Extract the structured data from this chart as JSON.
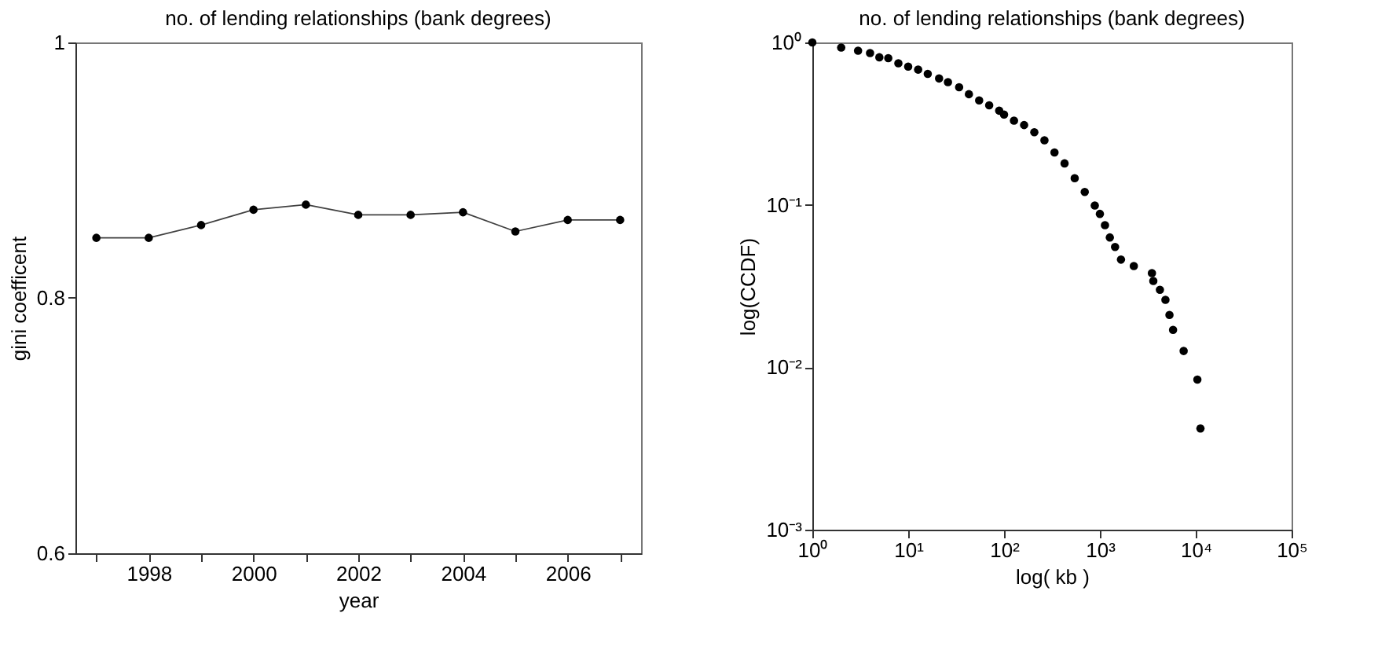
{
  "chart_data": [
    {
      "type": "line",
      "title": "no. of lending relationships (bank degrees)",
      "xlabel": "year",
      "ylabel": "gini coefficent",
      "x": [
        1997,
        1998,
        1999,
        2000,
        2001,
        2002,
        2003,
        2004,
        2005,
        2006,
        2007
      ],
      "series": [
        {
          "color": "#000000",
          "values": [
            0.847,
            0.847,
            0.857,
            0.869,
            0.873,
            0.865,
            0.865,
            0.867,
            0.852,
            0.861,
            0.861
          ]
        }
      ],
      "xlim": [
        1996.6,
        2007.4
      ],
      "ylim": [
        0.6,
        1
      ],
      "xticks": [
        {
          "value": 1997,
          "label": null
        },
        1998,
        {
          "value": 1999,
          "label": null
        },
        2000,
        {
          "value": 2001,
          "label": null
        },
        2002,
        {
          "value": 2003,
          "label": null
        },
        2004,
        {
          "value": 2005,
          "label": null
        },
        2006,
        {
          "value": 2007,
          "label": null
        }
      ],
      "yticks": [
        0.6,
        0.8,
        1
      ],
      "marker": "circle",
      "line_style": "solid",
      "grid": false
    },
    {
      "type": "scatter",
      "title": "no. of lending relationships (bank degrees)",
      "xlabel": "log( kb )",
      "ylabel": "log(CCDF)",
      "x": [
        1,
        2,
        3,
        4,
        5,
        6.2,
        7.9,
        10,
        12.7,
        16,
        21,
        26,
        34,
        43,
        55,
        70,
        89,
        100,
        127,
        162,
        207,
        264,
        336,
        428,
        546,
        695,
        885,
        1000,
        1130,
        1270,
        1440,
        1660,
        2260,
        3490,
        3610,
        4230,
        4830,
        5320,
        5800,
        7480,
        10400,
        11200
      ],
      "series": [
        {
          "color": "#000000",
          "values": [
            1,
            0.93,
            0.89,
            0.86,
            0.81,
            0.8,
            0.745,
            0.71,
            0.68,
            0.64,
            0.6,
            0.57,
            0.53,
            0.48,
            0.44,
            0.41,
            0.38,
            0.36,
            0.33,
            0.31,
            0.28,
            0.25,
            0.21,
            0.18,
            0.146,
            0.12,
            0.099,
            0.088,
            0.075,
            0.063,
            0.055,
            0.046,
            0.042,
            0.038,
            0.034,
            0.03,
            0.026,
            0.021,
            0.017,
            0.0126,
            0.0084,
            0.0042
          ]
        }
      ],
      "xlim": [
        1,
        100000
      ],
      "ylim": [
        0.001,
        1
      ],
      "xticks": [
        {
          "value": 1,
          "label": "10⁰"
        },
        {
          "value": 10,
          "label": "10¹"
        },
        {
          "value": 100,
          "label": "10²"
        },
        {
          "value": 1000,
          "label": "10³"
        },
        {
          "value": 10000,
          "label": "10⁴"
        },
        {
          "value": 100000,
          "label": "10⁵"
        }
      ],
      "yticks": [
        {
          "value": 0.001,
          "label": "10⁻³"
        },
        {
          "value": 0.01,
          "label": "10⁻²"
        },
        {
          "value": 0.1,
          "label": "10⁻¹"
        },
        {
          "value": 1,
          "label": "10⁰"
        }
      ],
      "log": "xy",
      "marker": "circle",
      "grid": false
    }
  ]
}
